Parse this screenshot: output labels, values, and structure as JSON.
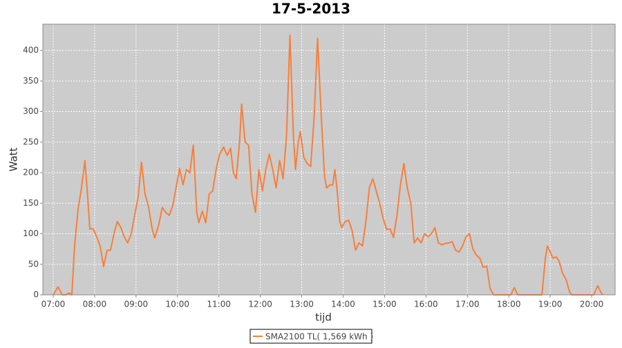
{
  "chart_data": {
    "type": "line",
    "title": "17-5-2013",
    "x_label": "tijd",
    "y_label": "Watt",
    "x": [
      "07:00",
      "07:07",
      "07:13",
      "07:18",
      "07:23",
      "07:27",
      "07:31",
      "07:36",
      "07:41",
      "07:46",
      "07:50",
      "07:53",
      "07:58",
      "08:03",
      "08:08",
      "08:13",
      "08:18",
      "08:23",
      "08:28",
      "08:33",
      "08:38",
      "08:43",
      "08:48",
      "08:53",
      "08:58",
      "09:03",
      "09:08",
      "09:13",
      "09:18",
      "09:23",
      "09:27",
      "09:33",
      "09:38",
      "09:43",
      "09:48",
      "09:53",
      "09:58",
      "10:03",
      "10:08",
      "10:13",
      "10:18",
      "10:23",
      "10:28",
      "10:31",
      "10:36",
      "10:41",
      "10:46",
      "10:51",
      "10:56",
      "11:01",
      "11:07",
      "11:12",
      "11:17",
      "11:21",
      "11:25",
      "11:30",
      "11:33",
      "11:38",
      "11:43",
      "11:48",
      "11:53",
      "11:58",
      "12:03",
      "12:08",
      "12:13",
      "12:18",
      "12:23",
      "12:28",
      "12:33",
      "12:38",
      "12:43",
      "12:48",
      "12:51",
      "12:55",
      "12:58",
      "13:03",
      "13:08",
      "13:13",
      "13:18",
      "13:23",
      "13:28",
      "13:33",
      "13:36",
      "13:41",
      "13:45",
      "13:48",
      "13:51",
      "13:55",
      "13:58",
      "14:03",
      "14:08",
      "14:13",
      "14:18",
      "14:23",
      "14:28",
      "14:33",
      "14:38",
      "14:43",
      "14:48",
      "14:53",
      "14:58",
      "15:03",
      "15:08",
      "15:13",
      "15:18",
      "15:23",
      "15:28",
      "15:33",
      "15:38",
      "15:43",
      "15:48",
      "15:53",
      "15:58",
      "16:03",
      "16:08",
      "16:13",
      "16:18",
      "16:23",
      "16:28",
      "16:33",
      "16:38",
      "16:43",
      "16:48",
      "16:53",
      "16:58",
      "17:03",
      "17:08",
      "17:13",
      "17:18",
      "17:23",
      "17:28",
      "17:33",
      "17:38",
      "18:03",
      "18:08",
      "18:13",
      "18:48",
      "18:53",
      "18:56",
      "19:00",
      "19:04",
      "19:09",
      "19:13",
      "19:18",
      "19:23",
      "19:28",
      "19:31",
      "20:03",
      "20:09",
      "20:13",
      "20:16"
    ],
    "series": [
      {
        "name": "SMA2100 TL( 1,569 kWh )",
        "color": "#f77f3a",
        "values": [
          0,
          13,
          0,
          0,
          3,
          0,
          80,
          140,
          175,
          220,
          160,
          108,
          108,
          95,
          80,
          46,
          73,
          73,
          100,
          120,
          110,
          95,
          85,
          100,
          130,
          160,
          217,
          165,
          145,
          110,
          93,
          115,
          143,
          135,
          130,
          145,
          175,
          207,
          180,
          205,
          200,
          245,
          135,
          118,
          137,
          118,
          165,
          170,
          205,
          230,
          242,
          228,
          240,
          200,
          190,
          250,
          312,
          250,
          245,
          165,
          135,
          205,
          170,
          205,
          230,
          205,
          175,
          220,
          190,
          260,
          425,
          260,
          205,
          250,
          267,
          225,
          215,
          210,
          290,
          420,
          300,
          195,
          175,
          180,
          180,
          205,
          175,
          120,
          110,
          120,
          122,
          105,
          73,
          85,
          80,
          120,
          175,
          190,
          170,
          150,
          125,
          107,
          108,
          94,
          130,
          180,
          215,
          175,
          150,
          85,
          93,
          85,
          100,
          95,
          100,
          110,
          85,
          82,
          84,
          85,
          87,
          73,
          70,
          80,
          95,
          100,
          75,
          65,
          60,
          45,
          47,
          10,
          0,
          0,
          12,
          0,
          0,
          60,
          80,
          70,
          60,
          62,
          55,
          35,
          25,
          5,
          0,
          0,
          15,
          5,
          0
        ]
      }
    ],
    "xlim": [
      "06:45",
      "20:34"
    ],
    "xticks": [
      "07:00",
      "08:00",
      "09:00",
      "10:00",
      "11:00",
      "12:00",
      "13:00",
      "14:00",
      "15:00",
      "16:00",
      "17:00",
      "18:00",
      "19:00",
      "20:00"
    ],
    "ylim": [
      0,
      443
    ],
    "yticks": [
      0,
      50,
      100,
      150,
      200,
      250,
      300,
      350,
      400
    ],
    "grid": true,
    "plot_background": "#cccccc",
    "legend": "bottom"
  }
}
